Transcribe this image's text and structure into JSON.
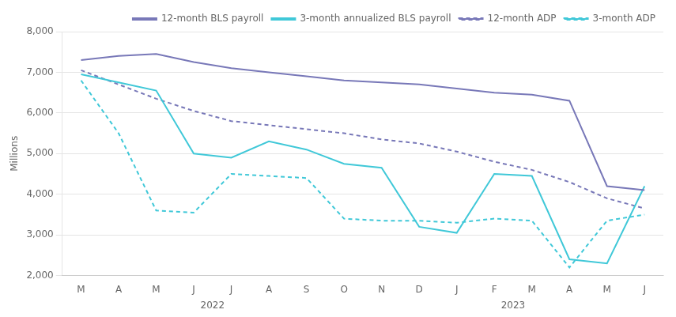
{
  "chart_data": {
    "type": "line",
    "y_label": "Millions",
    "categories": [
      "M",
      "A",
      "M",
      "J",
      "J",
      "A",
      "S",
      "O",
      "N",
      "D",
      "J",
      "F",
      "M",
      "A",
      "M",
      "J"
    ],
    "ylim": [
      2000,
      8000
    ],
    "yticks": [
      {
        "value": 2000,
        "label": "2,000"
      },
      {
        "value": 3000,
        "label": "3,000"
      },
      {
        "value": 4000,
        "label": "4,000"
      },
      {
        "value": 5000,
        "label": "5,000"
      },
      {
        "value": 6000,
        "label": "6,000"
      },
      {
        "value": 7000,
        "label": "7,000"
      },
      {
        "value": 8000,
        "label": "8,000"
      }
    ],
    "grid": "y",
    "legend": "upper right",
    "annotations": [
      {
        "text": "2022",
        "x": 3.5
      },
      {
        "text": "2023",
        "x": 11.5
      }
    ],
    "series": [
      {
        "name": "12-month BLS payroll",
        "color": "#7878b8",
        "line_style": "solid",
        "values": [
          7300,
          7400,
          7450,
          7250,
          7100,
          7000,
          6900,
          6800,
          6750,
          6700,
          6600,
          6500,
          6450,
          6300,
          4200,
          4100
        ]
      },
      {
        "name": "3-month annualized BLS payroll",
        "color": "#40c8d8",
        "line_style": "solid",
        "values": [
          6950,
          6750,
          6550,
          5000,
          4900,
          5300,
          5100,
          4750,
          4650,
          3200,
          3050,
          4500,
          4450,
          2400,
          2300,
          4200
        ]
      },
      {
        "name": "12-month ADP",
        "color": "#7878b8",
        "line_style": "dotted",
        "values": [
          7050,
          6700,
          6350,
          6050,
          5800,
          5700,
          5600,
          5500,
          5350,
          5250,
          5050,
          4800,
          4600,
          4300,
          3900,
          3650
        ]
      },
      {
        "name": "3-month ADP",
        "color": "#40c8d8",
        "line_style": "dotted",
        "values": [
          6800,
          5500,
          3600,
          3550,
          4500,
          4450,
          4400,
          3400,
          3350,
          3350,
          3300,
          3400,
          3350,
          2200,
          3350,
          3500
        ]
      }
    ]
  }
}
